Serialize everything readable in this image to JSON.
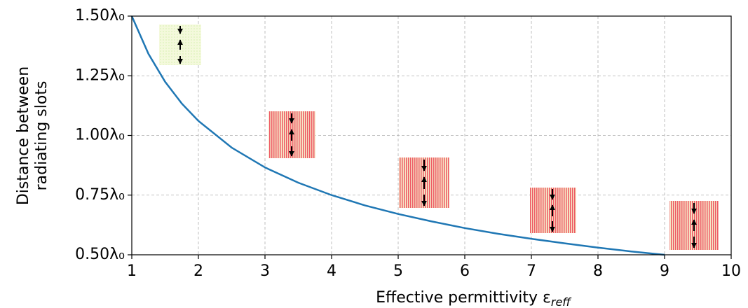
{
  "chart_data": {
    "type": "line",
    "x_label": "Effective permittivity ε",
    "x_label_sub": "reff",
    "y_label": [
      "Distance between",
      "radiating slots"
    ],
    "x": [
      1,
      1.25,
      1.5,
      1.75,
      2,
      2.5,
      3,
      3.5,
      4,
      4.5,
      5,
      5.5,
      6,
      6.5,
      7,
      7.5,
      8,
      8.5,
      9
    ],
    "series": [
      {
        "color": "#1f77b4",
        "values": [
          1.5,
          1.342,
          1.225,
          1.134,
          1.061,
          0.949,
          0.866,
          0.802,
          0.75,
          0.707,
          0.671,
          0.64,
          0.612,
          0.588,
          0.567,
          0.548,
          0.53,
          0.514,
          0.5
        ]
      }
    ],
    "xlim": [
      1,
      10
    ],
    "xticks": [
      1,
      2,
      3,
      4,
      5,
      6,
      7,
      8,
      9,
      10
    ],
    "ylim": [
      0.5,
      1.5
    ],
    "yticks": [
      {
        "value": 0.5,
        "label": "0.50λ₀"
      },
      {
        "value": 0.75,
        "label": "0.75λ₀"
      },
      {
        "value": 1.0,
        "label": "1.00λ₀"
      },
      {
        "value": 1.25,
        "label": "1.25λ₀"
      },
      {
        "value": 1.5,
        "label": "1.50λ₀"
      }
    ],
    "grid": true
  }
}
